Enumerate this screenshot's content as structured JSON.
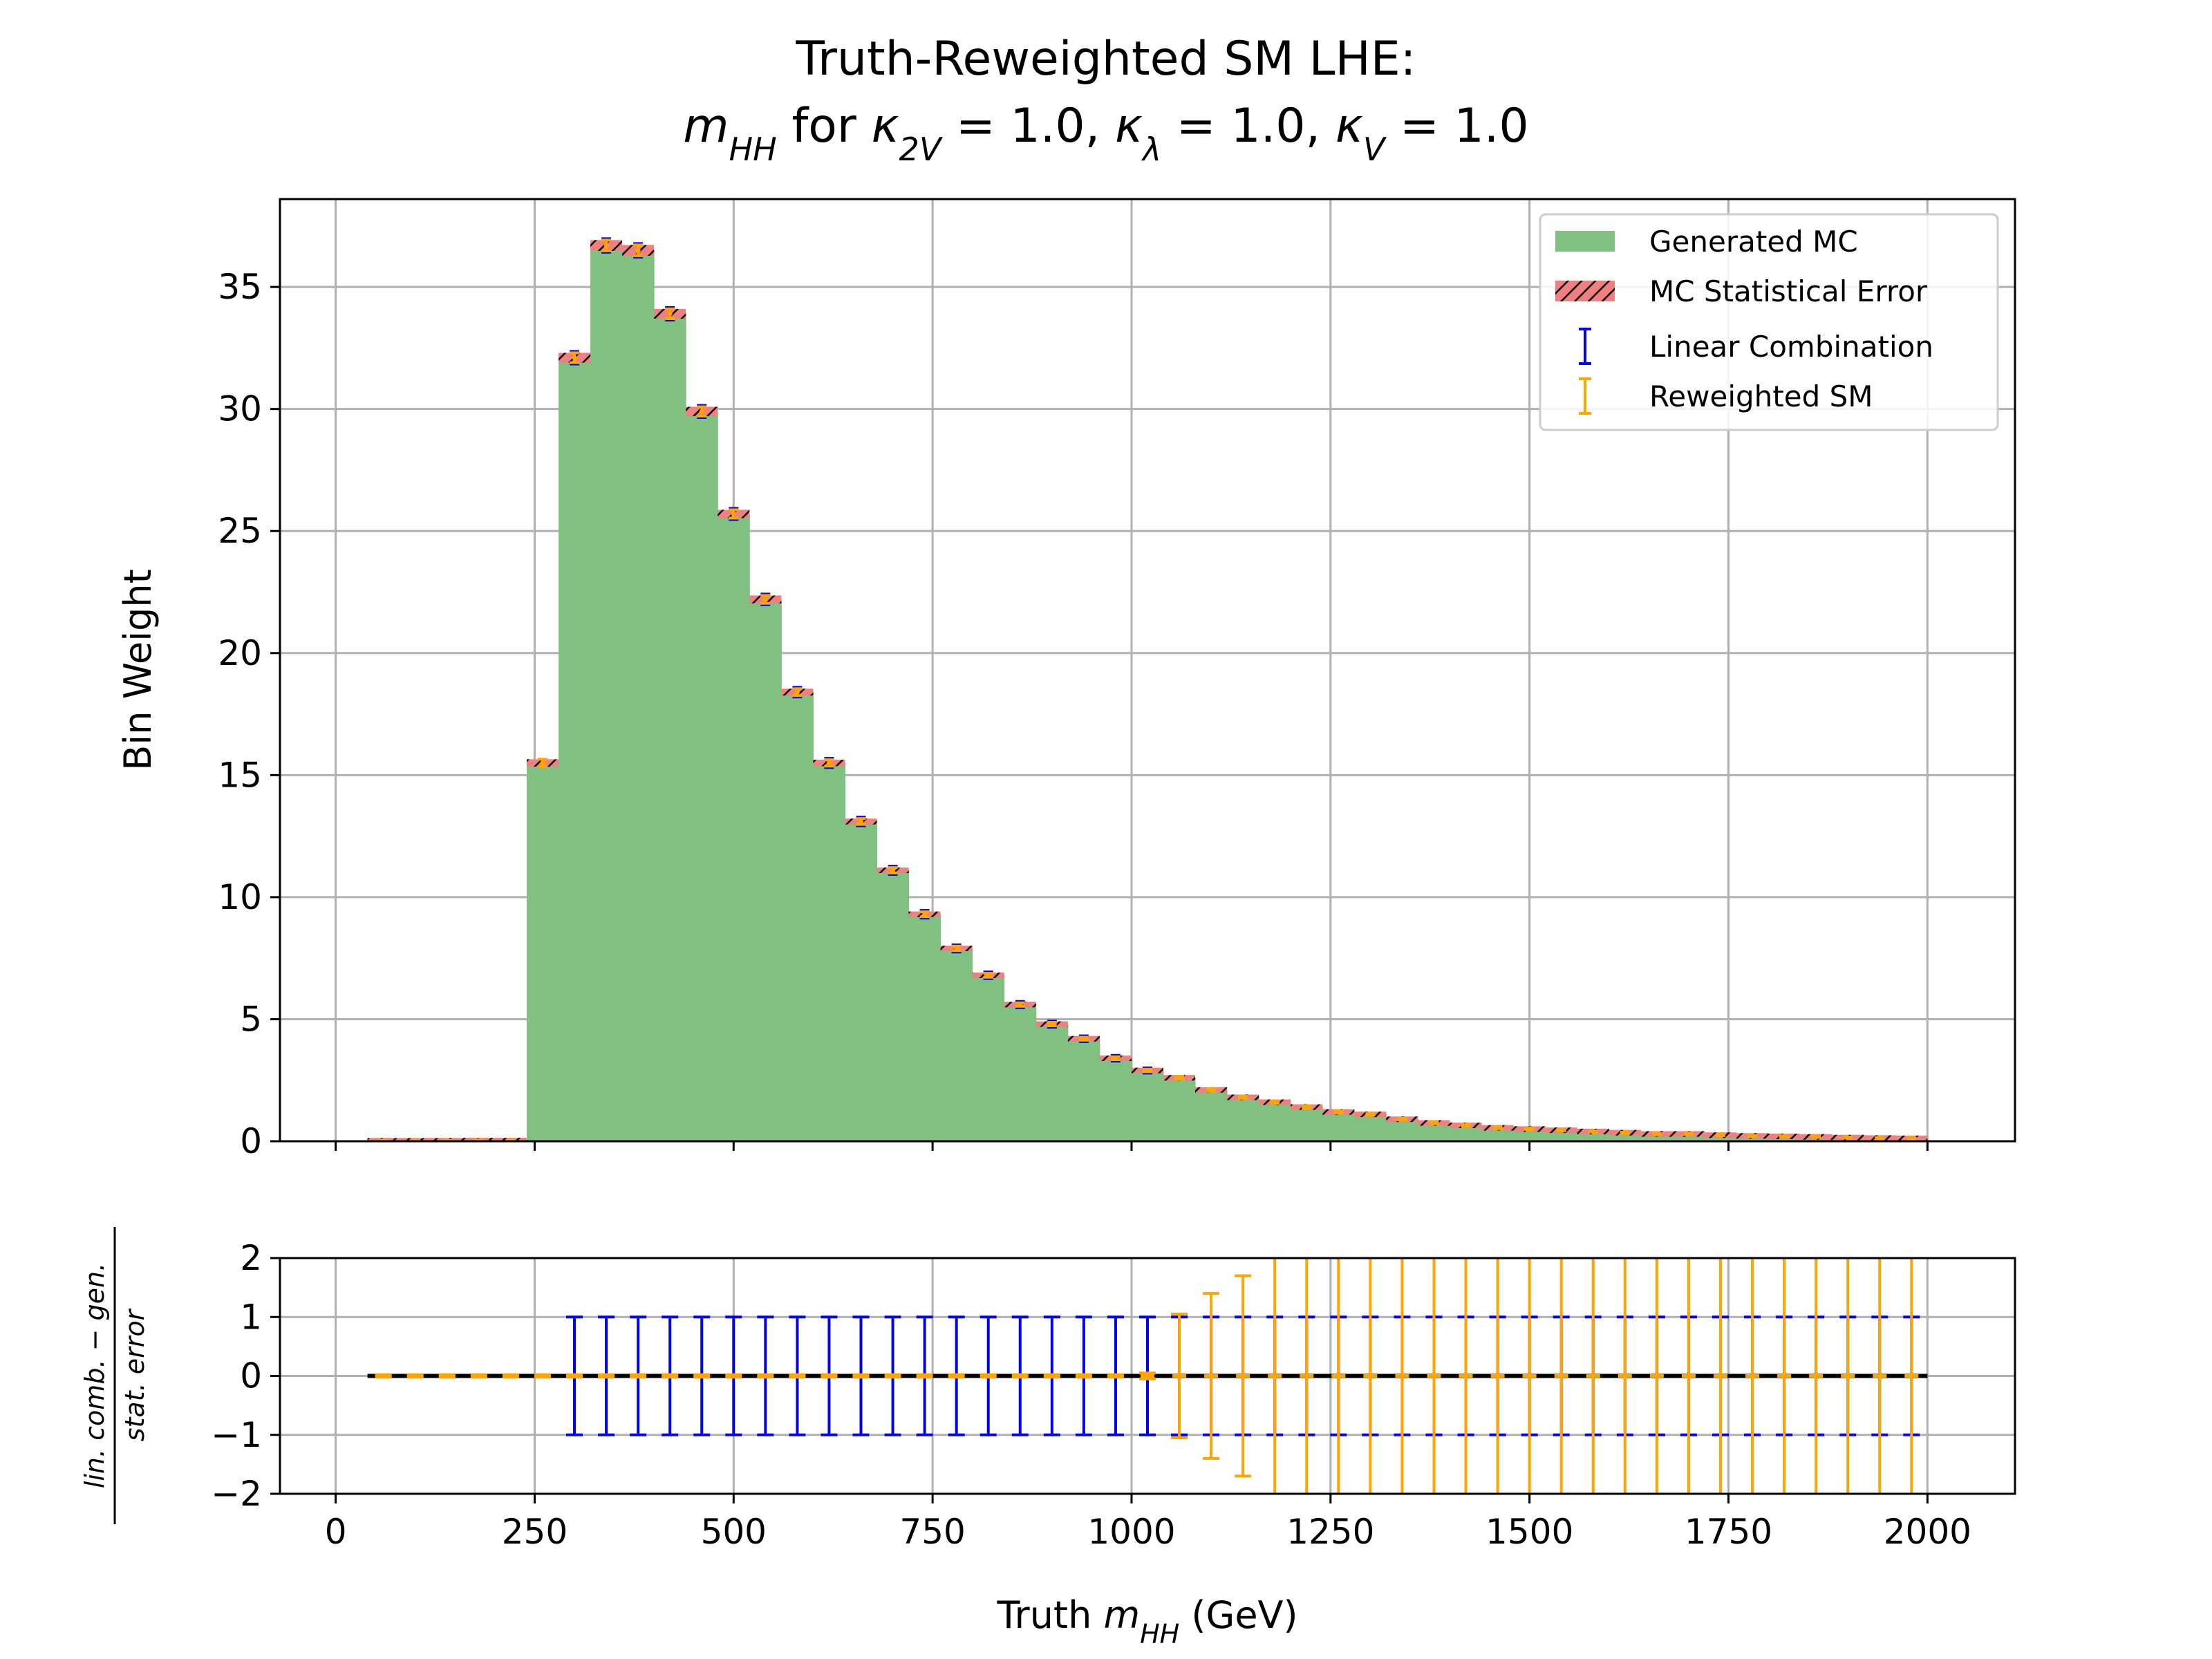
{
  "chart_data": [
    {
      "type": "bar",
      "title": "Truth-Reweighted SM LHE:",
      "subtitle": {
        "mhh_symbol": "m",
        "mhh_sub": "HH",
        "for": " for ",
        "k2v_symbol": "κ",
        "k2v_sub": "2V",
        "k2v_value": " = 1.0, ",
        "kl_symbol": "κ",
        "kl_sub": "λ",
        "kl_value": " = 1.0, ",
        "kv_symbol": "κ",
        "kv_sub": "V",
        "kv_value": " = 1.0"
      },
      "xlabel": "",
      "ylabel": "Bin Weight",
      "xlim": [
        -70,
        2110
      ],
      "ylim": [
        0,
        38.6
      ],
      "xticks": [
        0,
        250,
        500,
        750,
        1000,
        1250,
        1500,
        1750,
        2000
      ],
      "yticks": [
        0,
        5,
        10,
        15,
        20,
        25,
        30,
        35
      ],
      "grid": true,
      "legend_position": "top-right",
      "legend": [
        "Generated MC",
        "MC Statistical Error",
        "Linear Combination",
        "Reweighted SM"
      ],
      "bin_edges": [
        40,
        80,
        120,
        160,
        200,
        240,
        280,
        320,
        360,
        400,
        440,
        480,
        520,
        560,
        600,
        640,
        680,
        720,
        760,
        800,
        840,
        880,
        920,
        960,
        1000,
        1040,
        1080,
        1120,
        1160,
        1200,
        1240,
        1280,
        1320,
        1360,
        1400,
        1440,
        1480,
        1520,
        1560,
        1600,
        1640,
        1680,
        1720,
        1760,
        1800,
        1840,
        1880,
        1920,
        1960,
        2000
      ],
      "series": [
        {
          "name": "Generated MC",
          "color": "#80c080",
          "values": [
            0.02,
            0.02,
            0.02,
            0.03,
            0.03,
            15.5,
            32.1,
            36.7,
            36.5,
            33.9,
            29.9,
            25.7,
            22.2,
            18.4,
            15.5,
            13.1,
            11.1,
            9.3,
            7.9,
            6.8,
            5.6,
            4.8,
            4.2,
            3.4,
            2.9,
            2.6,
            2.1,
            1.8,
            1.6,
            1.4,
            1.2,
            1.1,
            0.9,
            0.75,
            0.65,
            0.55,
            0.5,
            0.45,
            0.4,
            0.35,
            0.3,
            0.3,
            0.25,
            0.22,
            0.2,
            0.18,
            0.15,
            0.13,
            0.12
          ]
        },
        {
          "name": "MC Statistical Error",
          "color": "#f08080",
          "values": [
            0.02,
            0.02,
            0.02,
            0.03,
            0.03,
            0.15,
            0.2,
            0.22,
            0.22,
            0.2,
            0.19,
            0.17,
            0.16,
            0.14,
            0.13,
            0.12,
            0.11,
            0.1,
            0.09,
            0.08,
            0.07,
            0.07,
            0.06,
            0.06,
            0.05,
            0.05,
            0.05,
            0.04,
            0.04,
            0.04,
            0.04,
            0.03,
            0.03,
            0.03,
            0.03,
            0.03,
            0.03,
            0.02,
            0.02,
            0.02,
            0.02,
            0.02,
            0.02,
            0.02,
            0.02,
            0.02,
            0.02,
            0.02,
            0.02
          ]
        },
        {
          "name": "Linear Combination",
          "color": "#0000ff",
          "values": [
            null,
            null,
            null,
            null,
            null,
            null,
            32.1,
            36.7,
            36.5,
            33.9,
            29.9,
            25.7,
            22.2,
            18.4,
            15.5,
            13.1,
            11.1,
            9.3,
            7.9,
            6.8,
            5.6,
            4.8,
            4.2,
            3.4,
            2.9,
            null,
            null,
            null,
            null,
            null,
            null,
            null,
            null,
            null,
            null,
            null,
            null,
            null,
            null,
            null,
            null,
            null,
            null,
            null,
            null,
            null,
            null,
            null,
            null
          ]
        },
        {
          "name": "Reweighted SM",
          "color": "#ffa500",
          "values": [
            0.02,
            0.02,
            0.02,
            0.03,
            0.03,
            15.5,
            32.1,
            36.7,
            36.5,
            33.9,
            29.9,
            25.7,
            22.2,
            18.4,
            15.5,
            13.1,
            11.1,
            9.3,
            7.9,
            6.8,
            5.6,
            4.8,
            4.2,
            3.4,
            2.9,
            2.6,
            2.1,
            1.8,
            1.6,
            1.4,
            1.2,
            1.1,
            0.9,
            0.75,
            0.65,
            0.55,
            0.5,
            0.45,
            0.4,
            0.35,
            0.3,
            0.3,
            0.25,
            0.22,
            0.2,
            0.18,
            0.15,
            0.13,
            0.12
          ]
        }
      ]
    },
    {
      "type": "scatter",
      "title": "",
      "xlabel": {
        "prefix": "Truth ",
        "symbol": "m",
        "sub": "HH",
        "suffix": " (GeV)"
      },
      "ylabel": {
        "numerator": "lin. comb. − gen.",
        "denominator": "stat. error"
      },
      "xlim": [
        -70,
        2110
      ],
      "ylim": [
        -2,
        2
      ],
      "xticks": [
        0,
        250,
        500,
        750,
        1000,
        1250,
        1500,
        1750,
        2000
      ],
      "yticks": [
        -2,
        -1,
        0,
        1,
        2
      ],
      "grid": true,
      "reference_line": 0,
      "x": [
        60,
        100,
        140,
        180,
        220,
        260,
        300,
        340,
        380,
        420,
        460,
        500,
        540,
        580,
        620,
        660,
        700,
        740,
        780,
        820,
        860,
        900,
        940,
        980,
        1020,
        1060,
        1100,
        1140,
        1180,
        1220,
        1260,
        1300,
        1340,
        1380,
        1420,
        1460,
        1500,
        1540,
        1580,
        1620,
        1660,
        1700,
        1740,
        1780,
        1820,
        1860,
        1900,
        1940,
        1980
      ],
      "series": [
        {
          "name": "Linear Combination",
          "color": "#0000ff",
          "values": [
            null,
            null,
            null,
            null,
            null,
            null,
            0,
            0,
            0,
            0,
            0,
            0,
            0,
            0,
            0,
            0,
            0,
            0,
            0,
            0,
            0,
            0,
            0,
            0,
            0,
            0,
            0,
            0,
            0,
            0,
            0,
            0,
            0,
            0,
            0,
            0,
            0,
            0,
            0,
            0,
            0,
            0,
            0,
            0,
            0,
            0,
            0,
            0,
            0
          ],
          "errors": [
            null,
            null,
            null,
            null,
            null,
            null,
            1,
            1,
            1,
            1,
            1,
            1,
            1,
            1,
            1,
            1,
            1,
            1,
            1,
            1,
            1,
            1,
            1,
            1,
            1,
            1,
            1,
            1,
            1,
            1,
            1,
            1,
            1,
            1,
            1,
            1,
            1,
            1,
            1,
            1,
            1,
            1,
            1,
            1,
            1,
            1,
            1,
            1,
            1
          ]
        },
        {
          "name": "Reweighted SM",
          "color": "#ffa500",
          "values": [
            0,
            0,
            0,
            0,
            0,
            0,
            0,
            0,
            0,
            0,
            0,
            0,
            0,
            0,
            0,
            0,
            0,
            0,
            0,
            0,
            0,
            0,
            0,
            0,
            0,
            0,
            0,
            0,
            0,
            0,
            0,
            0,
            0,
            0,
            0,
            0,
            0,
            0,
            0,
            0,
            0,
            0,
            0,
            0,
            0,
            0,
            0,
            0,
            0
          ],
          "errors": [
            0.02,
            0.02,
            0.02,
            0.02,
            0.02,
            0.02,
            0.02,
            0.02,
            0.02,
            0.02,
            0.02,
            0.02,
            0.02,
            0.02,
            0.02,
            0.02,
            0.02,
            0.02,
            0.02,
            0.02,
            0.02,
            0.02,
            0.02,
            0.02,
            0.05,
            1.05,
            1.4,
            1.7,
            2.2,
            2.2,
            2.2,
            2.2,
            2.2,
            2.2,
            2.2,
            2.2,
            2.2,
            2.2,
            2.2,
            2.2,
            2.2,
            2.2,
            2.2,
            2.2,
            2.2,
            2.2,
            2.2,
            2.2,
            2.2
          ]
        }
      ]
    }
  ]
}
